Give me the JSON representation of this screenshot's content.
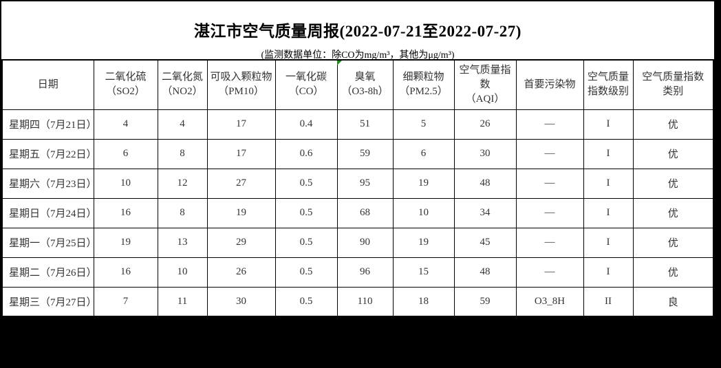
{
  "page": {
    "title": "湛江市空气质量周报(2022-07-21至2022-07-27)",
    "subtitle": "(监测数据单位：除CO为mg/m³，其他为μg/m³)"
  },
  "colors": {
    "cell_marker_green": "#1e8b1e",
    "table_text": "#333333",
    "frame_black": "#000000",
    "sheet_white": "#ffffff"
  },
  "table": {
    "columns": [
      {
        "id": "date",
        "line1": "日期",
        "line2": ""
      },
      {
        "id": "so2",
        "line1": "二氧化硫",
        "line2": "（SO2）"
      },
      {
        "id": "no2",
        "line1": "二氧化氮",
        "line2": "（NO2）"
      },
      {
        "id": "pm10",
        "line1": "可吸入颗粒物",
        "line2": "（PM10）"
      },
      {
        "id": "co",
        "line1": "一氧化碳",
        "line2": "（CO）"
      },
      {
        "id": "o3-8h",
        "line1": "臭氧",
        "line2": "（O3-8h）"
      },
      {
        "id": "pm25",
        "line1": "细颗粒物",
        "line2": "（PM2.5）"
      },
      {
        "id": "aqi",
        "line1": "空气质量指数",
        "line2": "（AQI）"
      },
      {
        "id": "primary-pollutant",
        "line1": "首要污染物",
        "line2": ""
      },
      {
        "id": "aqi-level",
        "line1": "空气质量",
        "line2": "指数级别"
      },
      {
        "id": "aqi-category",
        "line1": "空气质量指数",
        "line2": "类别"
      }
    ],
    "rows": [
      {
        "date": "星期四（7月21日）",
        "values": [
          "4",
          "4",
          "17",
          "0.4",
          "51",
          "5",
          "26",
          "—",
          "I",
          "优"
        ]
      },
      {
        "date": "星期五（7月22日）",
        "values": [
          "6",
          "8",
          "17",
          "0.6",
          "59",
          "6",
          "30",
          "—",
          "I",
          "优"
        ]
      },
      {
        "date": "星期六（7月23日）",
        "values": [
          "10",
          "12",
          "27",
          "0.5",
          "95",
          "19",
          "48",
          "—",
          "I",
          "优"
        ]
      },
      {
        "date": "星期日（7月24日）",
        "values": [
          "16",
          "8",
          "19",
          "0.5",
          "68",
          "10",
          "34",
          "—",
          "I",
          "优"
        ]
      },
      {
        "date": "星期一（7月25日）",
        "values": [
          "19",
          "13",
          "29",
          "0.5",
          "90",
          "19",
          "45",
          "—",
          "I",
          "优"
        ]
      },
      {
        "date": "星期二（7月26日）",
        "values": [
          "16",
          "10",
          "26",
          "0.5",
          "96",
          "15",
          "48",
          "—",
          "I",
          "优"
        ]
      },
      {
        "date": "星期三（7月27日）",
        "values": [
          "7",
          "11",
          "30",
          "0.5",
          "110",
          "18",
          "59",
          "O3_8H",
          "II",
          "良"
        ]
      }
    ]
  }
}
